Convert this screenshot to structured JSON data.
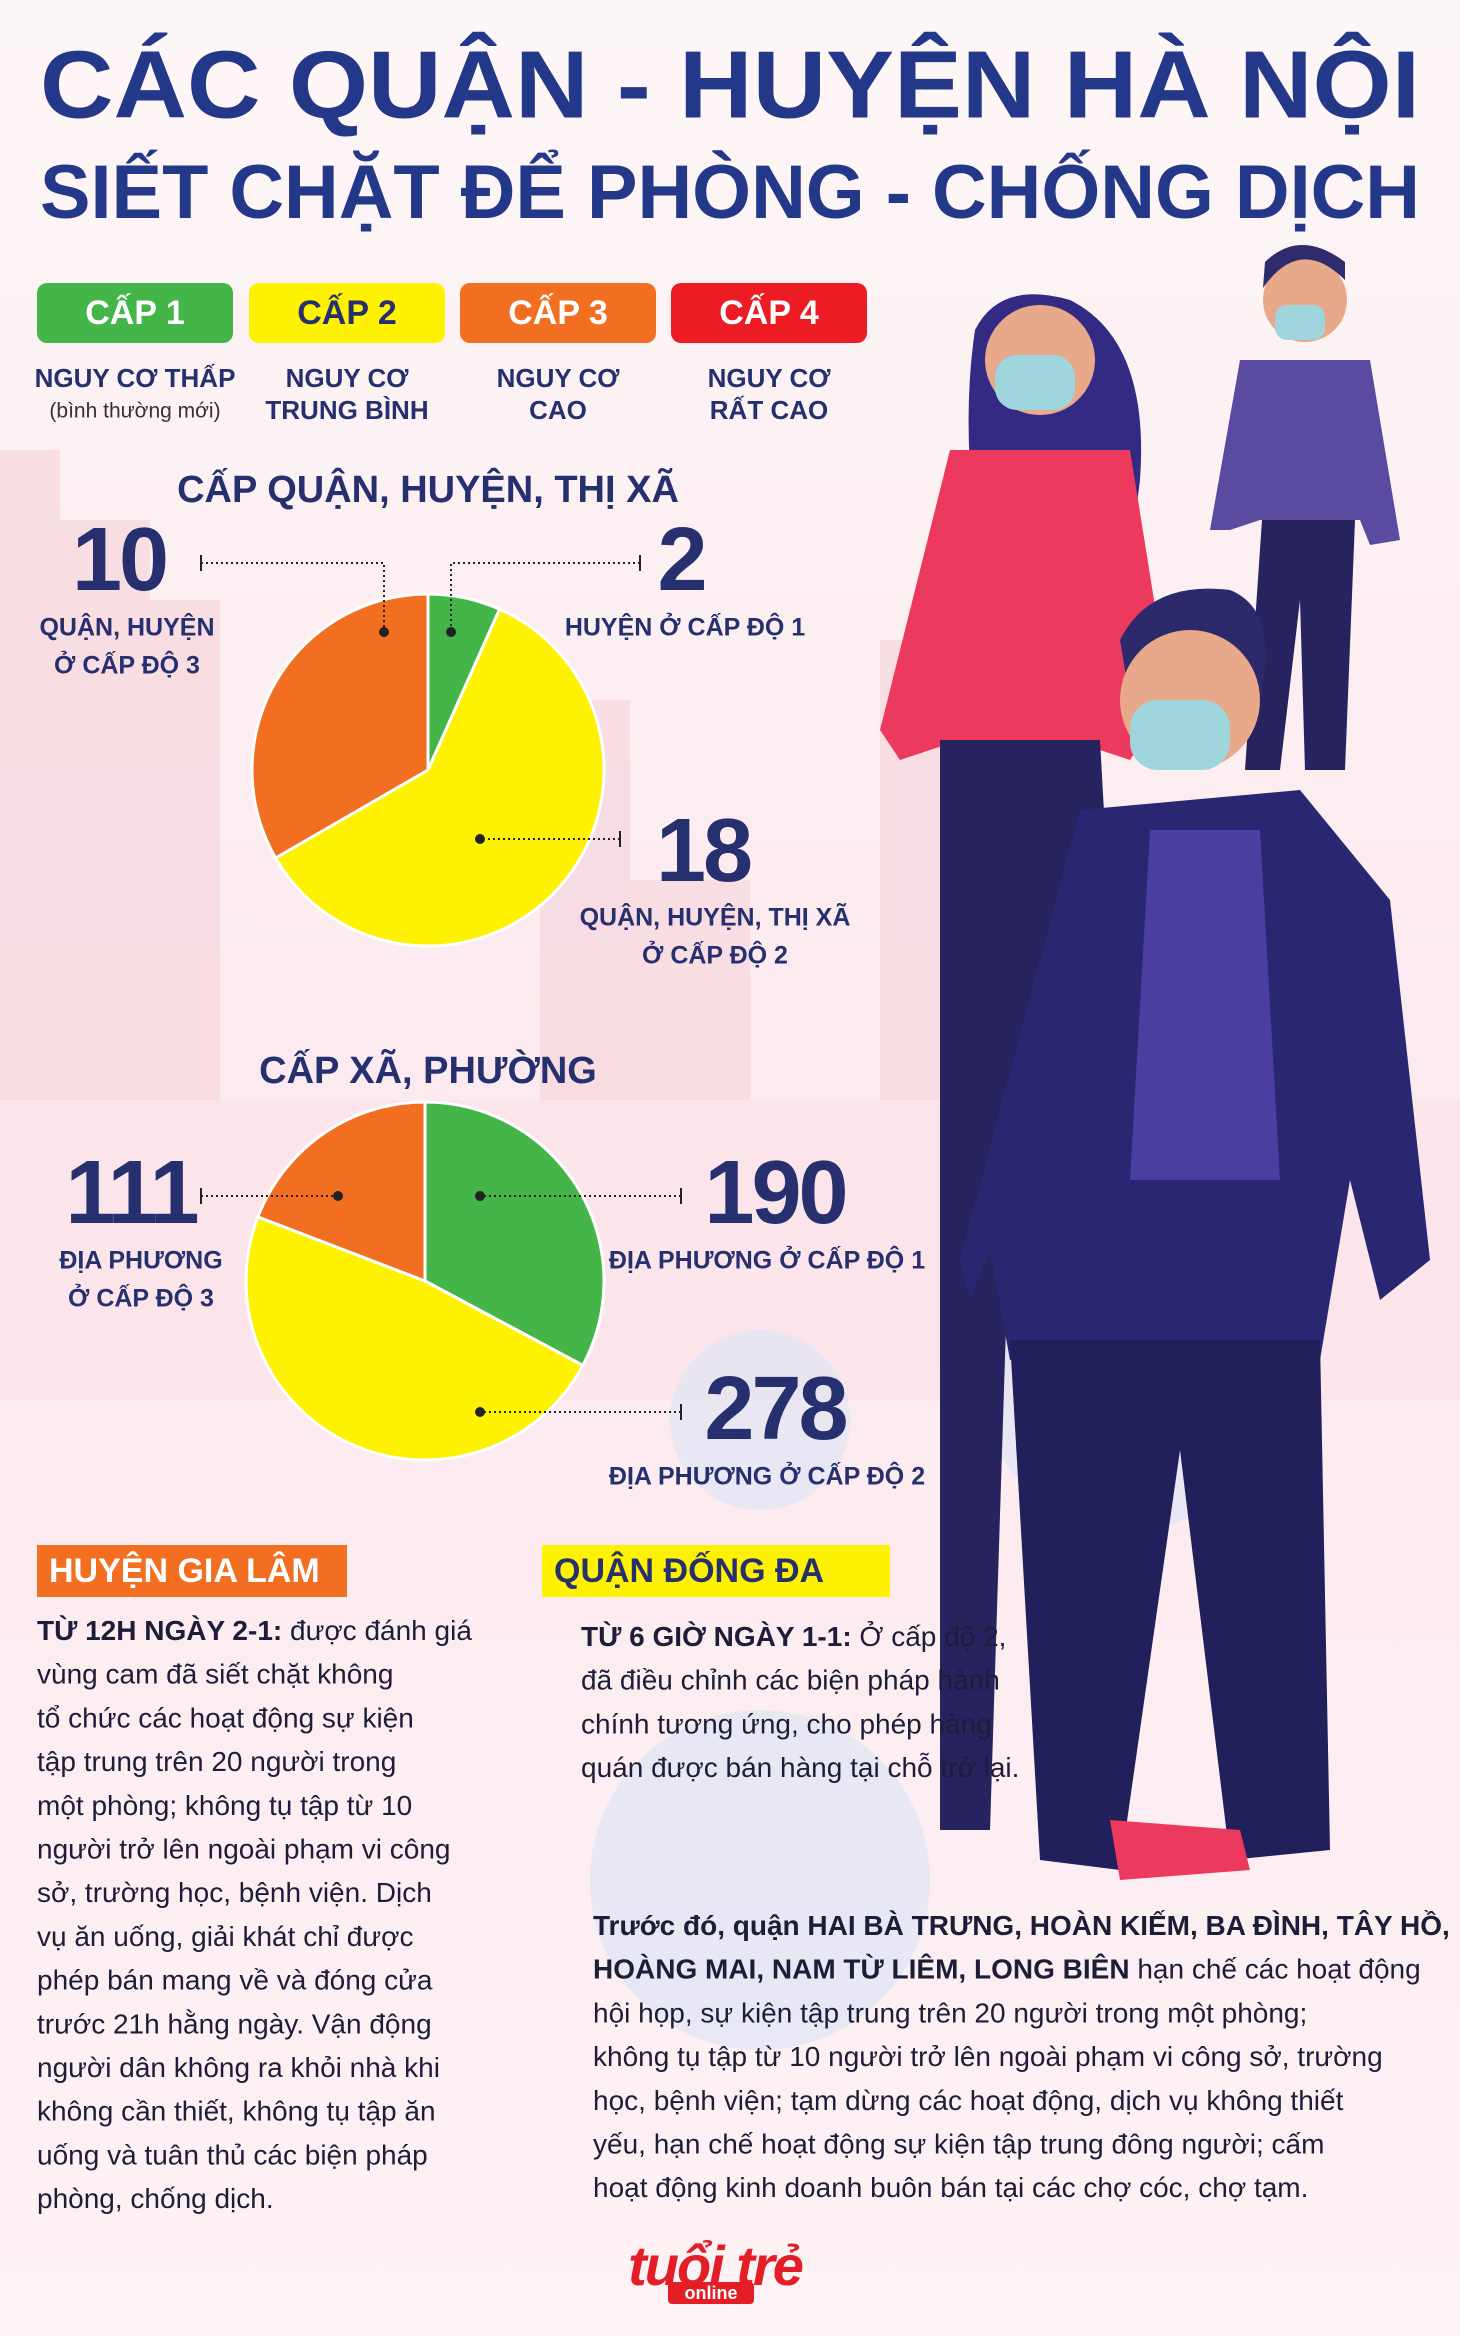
{
  "header": {
    "title_line1": "CÁC QUẬN - HUYỆN HÀ NỘI",
    "title_line2": "SIẾT CHẶT ĐỂ PHÒNG - CHỐNG DỊCH"
  },
  "levels": [
    {
      "label": "CẤP 1",
      "desc": [
        "NGUY CƠ THẤP",
        "(bình thường mới)"
      ],
      "color": "#43b549",
      "text_color": "#ffffff"
    },
    {
      "label": "CẤP 2",
      "desc": [
        "NGUY CƠ",
        "TRUNG BÌNH"
      ],
      "color": "#fff200",
      "text_color": "#26306e"
    },
    {
      "label": "CẤP 3",
      "desc": [
        "NGUY CƠ",
        "CAO"
      ],
      "color": "#f26f21",
      "text_color": "#ffffff"
    },
    {
      "label": "CẤP 4",
      "desc": [
        "NGUY CƠ",
        "RẤT CAO"
      ],
      "color": "#ed1c24",
      "text_color": "#ffffff"
    }
  ],
  "chart_data": [
    {
      "type": "pie",
      "title": "CẤP QUẬN, HUYỆN, THỊ XÃ",
      "categories": [
        [
          "HUYỆN Ở CẤP ĐỘ 1"
        ],
        [
          "QUẬN, HUYỆN, THỊ XÃ",
          "Ở CẤP ĐỘ 2"
        ],
        [
          "QUẬN, HUYỆN",
          "Ở CẤP ĐỘ 3"
        ]
      ],
      "values": [
        2,
        18,
        10
      ],
      "colors": [
        "#43b549",
        "#fff200",
        "#f26f21"
      ]
    },
    {
      "type": "pie",
      "title": "CẤP XÃ, PHƯỜNG",
      "categories": [
        [
          "ĐỊA PHƯƠNG Ở CẤP ĐỘ 1"
        ],
        [
          "ĐỊA PHƯƠNG Ở CẤP ĐỘ 2"
        ],
        [
          "ĐỊA PHƯƠNG",
          "Ở CẤP ĐỘ 3"
        ]
      ],
      "values": [
        190,
        278,
        111
      ],
      "colors": [
        "#43b549",
        "#fff200",
        "#f26f21"
      ]
    }
  ],
  "gia_lam": {
    "heading": "HUYỆN GIA LÂM",
    "lead": "TỪ 12H NGÀY 2-1:",
    "lines": [
      " được đánh giá",
      "vùng cam đã siết chặt không",
      "tổ chức các hoạt động sự kiện",
      "tập trung trên 20 người trong",
      "một phòng; không tụ tập từ 10",
      "người trở lên ngoài phạm vi công",
      "sở, trường học, bệnh viện. Dịch",
      "vụ ăn uống, giải khát chỉ được",
      "phép bán mang về và đóng cửa",
      "trước 21h hằng ngày. Vận động",
      "người dân không ra khỏi nhà khi",
      "không cần thiết, không tụ tập ăn",
      "uống và tuân thủ các biện pháp",
      "phòng, chống dịch."
    ]
  },
  "dong_da": {
    "heading": "QUẬN ĐỐNG ĐA",
    "lead": "TỪ 6 GIỜ NGÀY 1-1:",
    "lines": [
      " Ở cấp độ 2,",
      "đã điều chỉnh các biện pháp hành",
      "chính tương ứng, cho phép hàng",
      "quán được bán hàng tại chỗ trở lại."
    ]
  },
  "others": {
    "lines": [
      [
        {
          "text": "Trước đó, quận HAI BÀ TRƯNG, HOÀN KIẾM, BA ĐÌNH, TÂY HỒ,",
          "bold": true
        }
      ],
      [
        {
          "text": "HOÀNG MAI, NAM TỪ LIÊM, LONG BIÊN",
          "bold": true
        },
        {
          "text": " hạn chế các hoạt động",
          "bold": false
        }
      ],
      [
        {
          "text": "hội họp, sự kiện tập trung trên 20 người trong một phòng;",
          "bold": false
        }
      ],
      [
        {
          "text": "không tụ tập từ 10 người trở lên ngoài phạm vi công sở, trường",
          "bold": false
        }
      ],
      [
        {
          "text": "học, bệnh viện; tạm dừng các hoạt động, dịch vụ không thiết",
          "bold": false
        }
      ],
      [
        {
          "text": "yếu, hạn chế hoạt động sự kiện tập trung đông người; cấm",
          "bold": false
        }
      ],
      [
        {
          "text": "hoạt động kinh doanh buôn bán tại các chợ cóc, chợ tạm.",
          "bold": false
        }
      ]
    ]
  },
  "logo": {
    "main": "tuổi trẻ",
    "sub": "online"
  }
}
